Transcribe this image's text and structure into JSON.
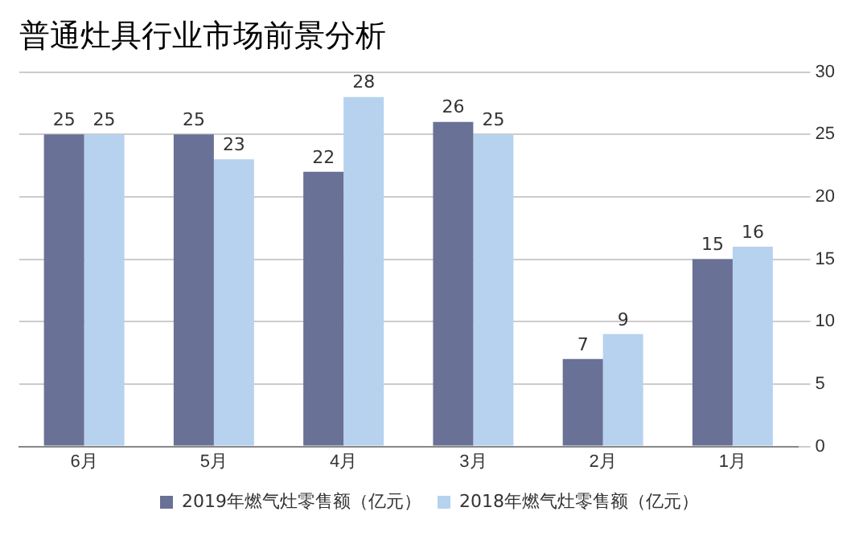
{
  "chart_data": {
    "type": "bar",
    "title": "普通灶具行业市场前景分析",
    "categories": [
      "6月",
      "5月",
      "4月",
      "3月",
      "2月",
      "1月"
    ],
    "series": [
      {
        "name": "2019年燃气灶零售额（亿元）",
        "color": "#6a7196",
        "values": [
          25,
          25,
          22,
          26,
          7,
          15
        ]
      },
      {
        "name": "2018年燃气灶零售额（亿元）",
        "color": "#b7d2ef",
        "values": [
          25,
          23,
          28,
          25,
          9,
          16
        ]
      }
    ],
    "ylim": [
      0,
      30
    ],
    "yticks": [
      0,
      5,
      10,
      15,
      20,
      25,
      30
    ],
    "grid": "y",
    "legend": "bottom",
    "data_labels": true
  }
}
